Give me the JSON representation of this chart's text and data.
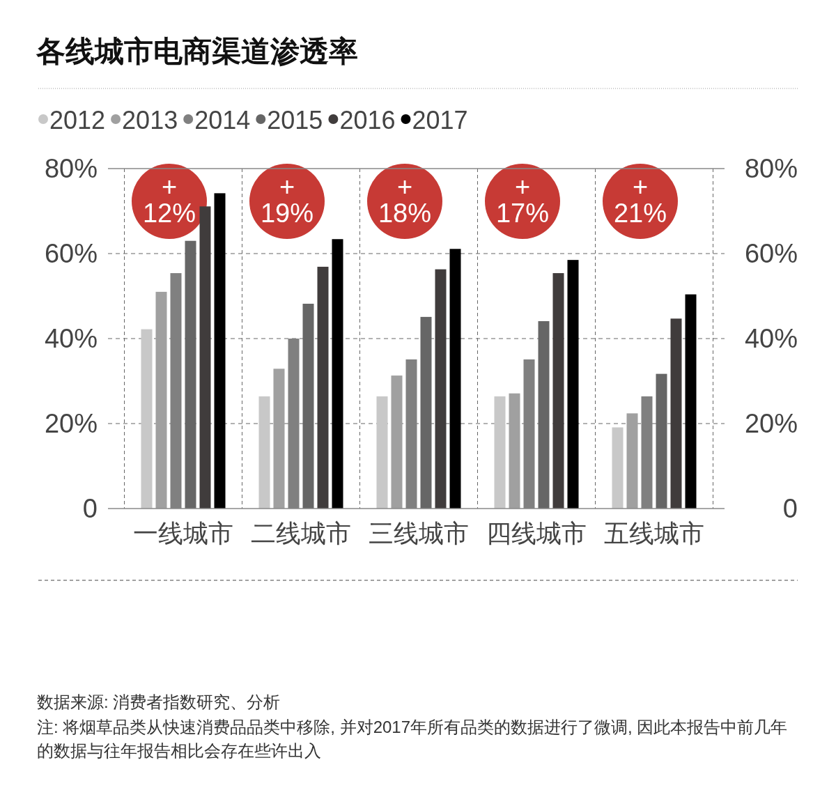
{
  "chart_data": {
    "type": "bar",
    "title": "各线城市电商渠道渗透率",
    "categories": [
      "一线城市",
      "二线城市",
      "三线城市",
      "四线城市",
      "五线城市"
    ],
    "series": [
      {
        "name": "2012",
        "color": "#c8c8c8",
        "values": [
          42.2,
          26.4,
          26.4,
          26.4,
          19.1
        ]
      },
      {
        "name": "2013",
        "color": "#a0a0a0",
        "values": [
          51.0,
          32.9,
          31.3,
          27.1,
          22.4
        ]
      },
      {
        "name": "2014",
        "color": "#808080",
        "values": [
          55.4,
          40.0,
          35.1,
          35.1,
          26.4
        ]
      },
      {
        "name": "2015",
        "color": "#666666",
        "values": [
          63.0,
          48.2,
          45.1,
          44.1,
          31.7
        ]
      },
      {
        "name": "2016",
        "color": "#403c3c",
        "values": [
          71.1,
          56.9,
          56.3,
          55.4,
          44.7
        ]
      },
      {
        "name": "2017",
        "color": "#000000",
        "values": [
          74.2,
          63.4,
          61.1,
          58.5,
          50.4
        ]
      }
    ],
    "ylim": [
      0,
      80
    ],
    "yticks": [
      {
        "value": 0,
        "label": "0"
      },
      {
        "value": 20,
        "label": "20%"
      },
      {
        "value": 40,
        "label": "40%"
      },
      {
        "value": 60,
        "label": "60%"
      },
      {
        "value": 80,
        "label": "80%"
      }
    ],
    "y2lim": [
      0,
      80
    ],
    "y2ticks": [
      {
        "value": 0,
        "label": "0"
      },
      {
        "value": 20,
        "label": "20%"
      },
      {
        "value": 40,
        "label": "40%"
      },
      {
        "value": 60,
        "label": "60%"
      },
      {
        "value": 80,
        "label": "80%"
      }
    ],
    "grid": true,
    "legend": "top left",
    "annotations": [
      "+\n12%",
      "+\n19%",
      "+\n18%",
      "+\n17%",
      "+\n21%",
      "数据来源: 消费者指数研究、分析",
      "注: 将烟草品类从快速消费品品类中移除, 并对2017年所有品类的数据进行了微调, 因此本报告中前几年的数据与往年报告相比会存在些许出入"
    ]
  }
}
